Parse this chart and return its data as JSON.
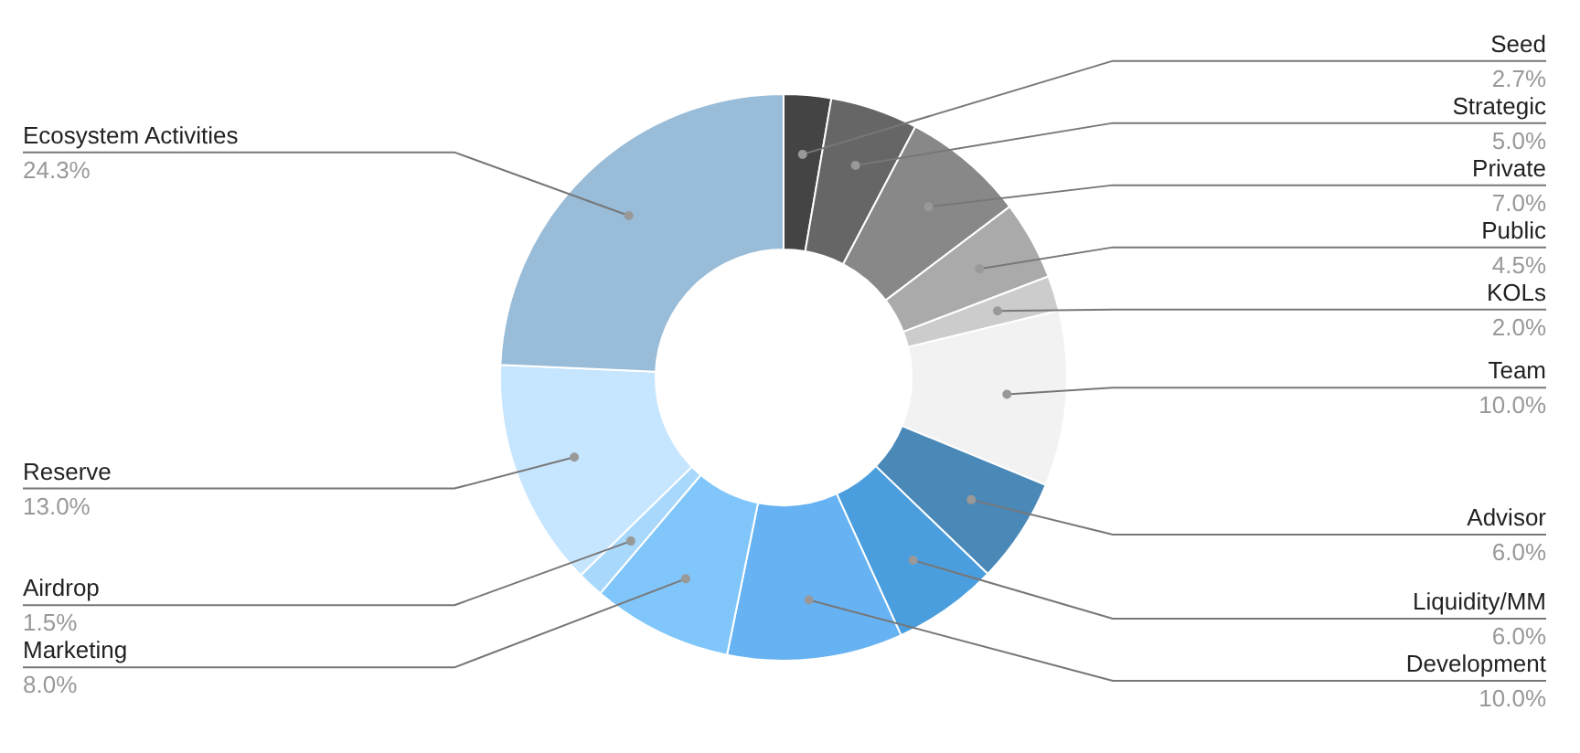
{
  "chart_data": {
    "type": "donut",
    "categories": [
      "Seed",
      "Strategic",
      "Private",
      "Public",
      "KOLs",
      "Team",
      "Advisor",
      "Liquidity/MM",
      "Development",
      "Marketing",
      "Airdrop",
      "Reserve",
      "Ecosystem Activities"
    ],
    "values": [
      2.7,
      5.0,
      7.0,
      4.5,
      2.0,
      10.0,
      6.0,
      6.0,
      10.0,
      8.0,
      1.5,
      13.0,
      24.3
    ],
    "value_labels": [
      "2.7%",
      "5.0%",
      "7.0%",
      "4.5%",
      "2.0%",
      "10.0%",
      "6.0%",
      "6.0%",
      "10.0%",
      "8.0%",
      "1.5%",
      "13.0%",
      "24.3%"
    ],
    "colors": [
      "#444444",
      "#666666",
      "#888888",
      "#aaaaaa",
      "#cccccc",
      "#f2f2f2",
      "#4a88b8",
      "#4a9ede",
      "#66b2f2",
      "#80c6fa",
      "#a8d8fc",
      "#c6e5ff",
      "#99bcd8"
    ]
  }
}
